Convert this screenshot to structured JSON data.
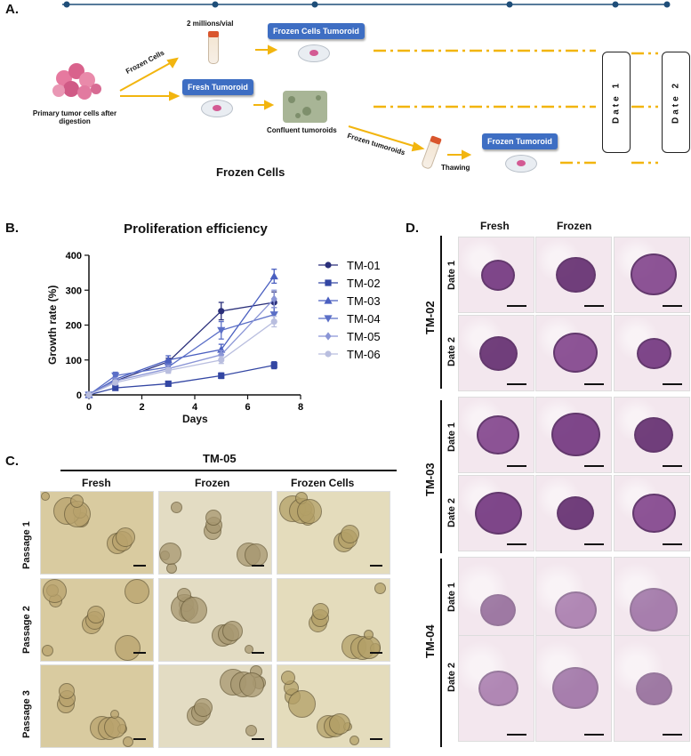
{
  "panelA": {
    "letter": "A.",
    "labels": {
      "primary": "Primary tumor cells after digestion",
      "frozen_cells_arrow": "Frozen Cells",
      "two_millions": "2 millions/vial",
      "frozen_cells_tumoroid": "Frozen Cells Tumoroid",
      "fresh_tumoroid": "Fresh Tumoroid",
      "confluent": "Confluent tumoroids",
      "frozen_tumoroids_arrow": "Frozen tumoroids",
      "thawing": "Thawing",
      "frozen_tumoroid": "Frozen Tumoroid",
      "bottom_caption": "Frozen Cells",
      "date1": "Date 1",
      "date2": "Date 2"
    },
    "colors": {
      "timeline": "#1f4e79",
      "arrow": "#f2b50f",
      "badge": "#3e6ec3"
    }
  },
  "panelB": {
    "letter": "B.",
    "title": "Proliferation efficiency",
    "xlabel": "Days",
    "ylabel": "Growth rate (%)"
  },
  "chart_data": {
    "type": "line",
    "title": "Proliferation efficiency",
    "xlabel": "Days",
    "ylabel": "Growth rate (%)",
    "xlim": [
      0,
      8
    ],
    "ylim": [
      0,
      400
    ],
    "xticks": [
      0,
      2,
      4,
      6,
      8
    ],
    "yticks": [
      0,
      100,
      200,
      300,
      400
    ],
    "legend_position": "right",
    "x": [
      0,
      1,
      3,
      5,
      7
    ],
    "series": [
      {
        "name": "TM-01",
        "marker": "circle",
        "color": "#2a2f7a",
        "values": [
          0,
          40,
          95,
          240,
          265
        ],
        "err": [
          0,
          8,
          10,
          25,
          30
        ]
      },
      {
        "name": "TM-02",
        "marker": "square",
        "color": "#3346a3",
        "values": [
          0,
          20,
          32,
          55,
          85
        ],
        "err": [
          0,
          4,
          6,
          8,
          10
        ]
      },
      {
        "name": "TM-03",
        "marker": "triangle-up",
        "color": "#4a5fc0",
        "values": [
          0,
          45,
          100,
          130,
          340
        ],
        "err": [
          0,
          8,
          12,
          15,
          20
        ]
      },
      {
        "name": "TM-04",
        "marker": "triangle-down",
        "color": "#5b6fc7",
        "values": [
          0,
          55,
          80,
          185,
          230
        ],
        "err": [
          0,
          10,
          10,
          25,
          20
        ]
      },
      {
        "name": "TM-05",
        "marker": "diamond",
        "color": "#8a95d6",
        "values": [
          0,
          40,
          75,
          115,
          275
        ],
        "err": [
          0,
          8,
          10,
          12,
          25
        ]
      },
      {
        "name": "TM-06",
        "marker": "circle",
        "color": "#b9bedf",
        "values": [
          0,
          35,
          70,
          100,
          210
        ],
        "err": [
          0,
          6,
          8,
          10,
          15
        ]
      }
    ]
  },
  "panelC": {
    "letter": "C.",
    "group": "TM-05",
    "columns": [
      "Fresh",
      "Frozen",
      "Frozen Cells"
    ],
    "rows": [
      "Passage 1",
      "Passage 2",
      "Passage 3"
    ]
  },
  "panelD": {
    "letter": "D.",
    "columns": [
      "Fresh",
      "Frozen"
    ],
    "groups": [
      "TM-02",
      "TM-03",
      "TM-04"
    ],
    "rows": [
      "Date 1",
      "Date 2"
    ]
  }
}
